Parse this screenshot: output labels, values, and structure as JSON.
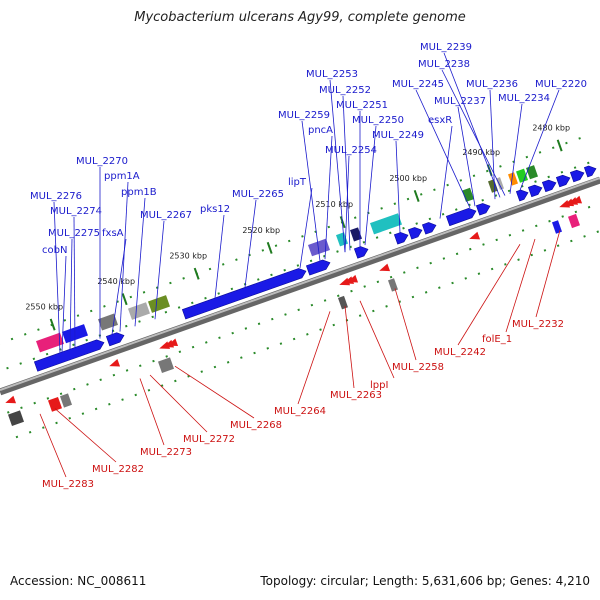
{
  "title": "Mycobacterium ulcerans Agy99, complete genome",
  "footer": {
    "accession": "Accession: NC_008611",
    "summary": "Topology: circular; Length: 5,631,606 bp; Genes: 4,210"
  },
  "colors": {
    "plus_strand_label": "#1a1acc",
    "minus_strand_label": "#cc1111",
    "backbone": "#888888",
    "tick": "#229922",
    "gene_plus": "#1a1ae6",
    "gene_minus": "#e61a1a"
  },
  "kbp_ticks": [
    {
      "text": "2480 kbp"
    },
    {
      "text": "2490 kbp"
    },
    {
      "text": "2500 kbp"
    },
    {
      "text": "2510 kbp"
    },
    {
      "text": "2520 kbp"
    },
    {
      "text": "2530 kbp"
    },
    {
      "text": "2540 kbp"
    },
    {
      "text": "2550 kbp"
    }
  ],
  "plus_labels": [
    "MUL_2239",
    "MUL_2238",
    "MUL_2253",
    "MUL_2245",
    "MUL_2236",
    "MUL_2220",
    "MUL_2252",
    "MUL_2237",
    "MUL_2234",
    "MUL_2251",
    "MUL_2259",
    "MUL_2250",
    "esxR",
    "pncA",
    "MUL_2249",
    "MUL_2254",
    "MUL_2270",
    "ppm1A",
    "lipT",
    "ppm1B",
    "MUL_2276",
    "MUL_2265",
    "pks12",
    "MUL_2274",
    "MUL_2267",
    "MUL_2275",
    "fxsA",
    "cobN"
  ],
  "minus_labels": [
    "MUL_2232",
    "folE_1",
    "MUL_2242",
    "MUL_2258",
    "lppI",
    "MUL_2263",
    "MUL_2264",
    "MUL_2268",
    "MUL_2272",
    "MUL_2273",
    "MUL_2282",
    "MUL_2283"
  ]
}
